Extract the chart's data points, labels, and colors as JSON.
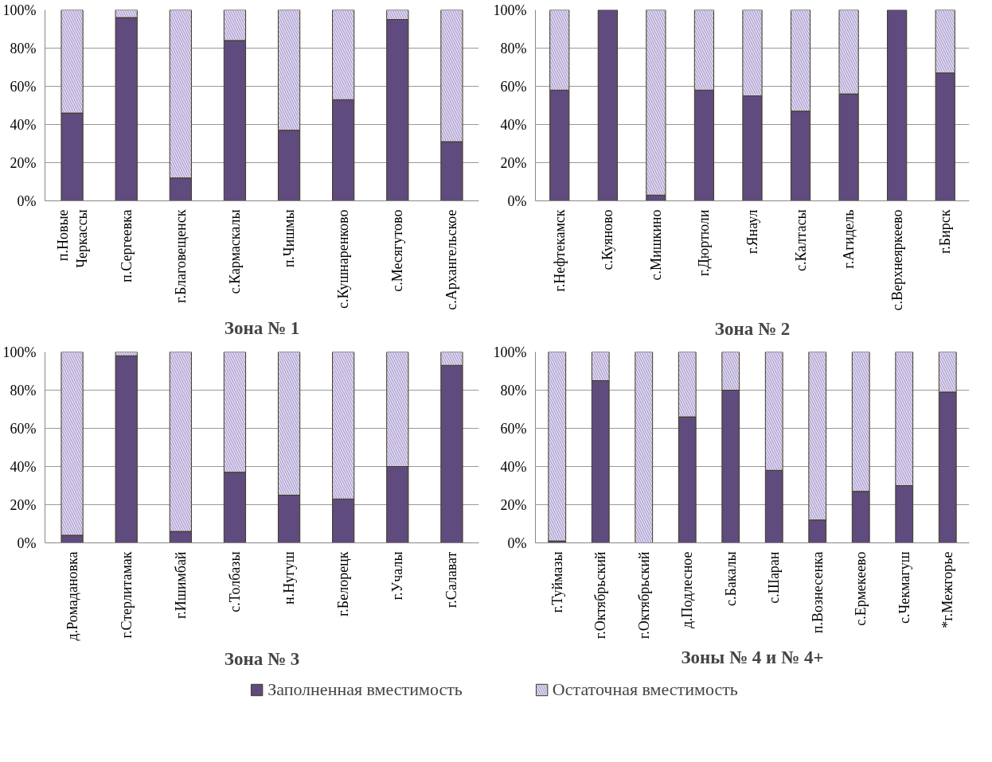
{
  "chart_data": [
    {
      "type": "bar",
      "stacked": true,
      "title": "Зона № 1",
      "categories": [
        "п.Новые Черкассы",
        "п.Сергеевка",
        "г.Благовещенск",
        "с.Кармаскалы",
        "п.Чишмы",
        "с.Кушнаренково",
        "с.Месягутово",
        "с.Архангельское"
      ],
      "series": [
        {
          "color": "#5f4b7d",
          "values": [
            46,
            96,
            12,
            84,
            37,
            53,
            95,
            31
          ]
        },
        {
          "color": "#b4a7d6",
          "values": [
            54,
            4,
            88,
            16,
            63,
            47,
            5,
            69
          ]
        }
      ],
      "ylim": [
        0,
        100
      ],
      "yticks": [
        {
          "value": 0,
          "label": "0%"
        },
        {
          "value": 20,
          "label": "20%"
        },
        {
          "value": 40,
          "label": "40%"
        },
        {
          "value": 60,
          "label": "60%"
        },
        {
          "value": 80,
          "label": "80%"
        },
        {
          "value": 100,
          "label": "100%"
        }
      ],
      "grid": "y"
    },
    {
      "type": "bar",
      "stacked": true,
      "title": "Зона № 2",
      "categories": [
        "г.Нефтекамск",
        "с.Куяново",
        "с.Мишкино",
        "г.Дюртюли",
        "г.Янаул",
        "с.Калтасы",
        "г.Агидель",
        "с.Верхнеяркеево",
        "г.Бирск"
      ],
      "series": [
        {
          "color": "#5f4b7d",
          "values": [
            58,
            100,
            3,
            58,
            55,
            47,
            56,
            100,
            67
          ]
        },
        {
          "color": "#b4a7d6",
          "values": [
            42,
            0,
            97,
            42,
            45,
            53,
            44,
            0,
            33
          ]
        }
      ],
      "ylim": [
        0,
        100
      ],
      "yticks": [
        {
          "value": 0,
          "label": "0%"
        },
        {
          "value": 20,
          "label": "20%"
        },
        {
          "value": 40,
          "label": "40%"
        },
        {
          "value": 60,
          "label": "60%"
        },
        {
          "value": 80,
          "label": "80%"
        },
        {
          "value": 100,
          "label": "100%"
        }
      ],
      "grid": "y"
    },
    {
      "type": "bar",
      "stacked": true,
      "title": "Зона № 3",
      "categories": [
        "д.Ромадановка",
        "г.Стерлитамак",
        "г.Ишимбай",
        "с.Толбазы",
        "н.Нугуш",
        "г.Белорецк",
        "г.Учалы",
        "г.Салават"
      ],
      "series": [
        {
          "color": "#5f4b7d",
          "values": [
            4,
            98,
            6,
            37,
            25,
            23,
            40,
            93
          ]
        },
        {
          "color": "#b4a7d6",
          "values": [
            96,
            2,
            94,
            63,
            75,
            77,
            60,
            7
          ]
        }
      ],
      "ylim": [
        0,
        100
      ],
      "yticks": [
        {
          "value": 0,
          "label": "0%"
        },
        {
          "value": 20,
          "label": "20%"
        },
        {
          "value": 40,
          "label": "40%"
        },
        {
          "value": 60,
          "label": "60%"
        },
        {
          "value": 80,
          "label": "80%"
        },
        {
          "value": 100,
          "label": "100%"
        }
      ],
      "grid": "y"
    },
    {
      "type": "bar",
      "stacked": true,
      "title": "Зоны № 4 и № 4+",
      "categories": [
        "г.Туймазы",
        "г.Октябрьский",
        "г.Октябрьский",
        "д.Подлесное",
        "с.Бакалы",
        "с.Шаран",
        "п.Вознесенка",
        "с.Ермекеево",
        "с.Чекмагуш",
        "*г.Межгорье"
      ],
      "series": [
        {
          "name": "Заполненная вместимость",
          "color": "#5f4b7d",
          "values": [
            1,
            85,
            0,
            66,
            80,
            38,
            12,
            27,
            30,
            79
          ]
        },
        {
          "name": "Остаточная вместимость",
          "color": "#b4a7d6",
          "values": [
            99,
            15,
            100,
            34,
            20,
            62,
            88,
            73,
            70,
            21
          ]
        }
      ],
      "ylim": [
        0,
        100
      ],
      "yticks": [
        {
          "value": 0,
          "label": "0%"
        },
        {
          "value": 20,
          "label": "20%"
        },
        {
          "value": 40,
          "label": "40%"
        },
        {
          "value": 60,
          "label": "60%"
        },
        {
          "value": 80,
          "label": "80%"
        },
        {
          "value": 100,
          "label": "100%"
        }
      ],
      "grid": "y",
      "legend": "bottom"
    }
  ]
}
